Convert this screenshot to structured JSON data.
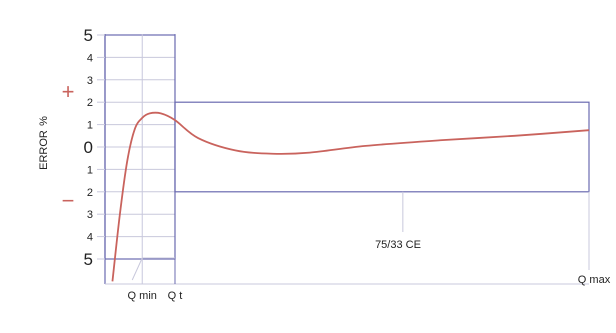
{
  "chart_data": {
    "type": "line",
    "title": "",
    "xlabel": "",
    "ylabel": "ERROR",
    "y_unit": "%",
    "sign_plus": "+",
    "sign_minus": "−",
    "ylim": [
      -5,
      5
    ],
    "y_ticks": [
      "5",
      "4",
      "3",
      "2",
      "1",
      "0",
      "1",
      "2",
      "3",
      "4",
      "5"
    ],
    "x_markers": [
      {
        "label": "Q min",
        "x": 1.0
      },
      {
        "label": "Q t",
        "x": 1.88
      }
    ],
    "x_end_label": "Q max",
    "x_end": 13.0,
    "annotation": "75/33 CE",
    "annotation_x": 8.0,
    "tolerance_bands": [
      {
        "x_start": 0,
        "x_end": 1.88,
        "limit": 5
      },
      {
        "x_start": 1.88,
        "x_end": 13.0,
        "limit": 2
      }
    ],
    "series": [
      {
        "color": "#c9635d",
        "x": [
          0.2,
          0.4,
          0.6,
          0.8,
          1.0,
          1.2,
          1.5,
          1.88,
          2.5,
          3.5,
          4.5,
          5.5,
          7.0,
          9.0,
          11.0,
          13.0
        ],
        "y": [
          -6.0,
          -3.0,
          -0.6,
          0.8,
          1.3,
          1.5,
          1.5,
          1.2,
          0.4,
          -0.15,
          -0.3,
          -0.25,
          0.05,
          0.3,
          0.5,
          0.75
        ]
      }
    ],
    "grid": true,
    "colors": {
      "frame": "#6a6ab0",
      "grid": "#c8c8dc",
      "sign": "#c9635d"
    }
  }
}
